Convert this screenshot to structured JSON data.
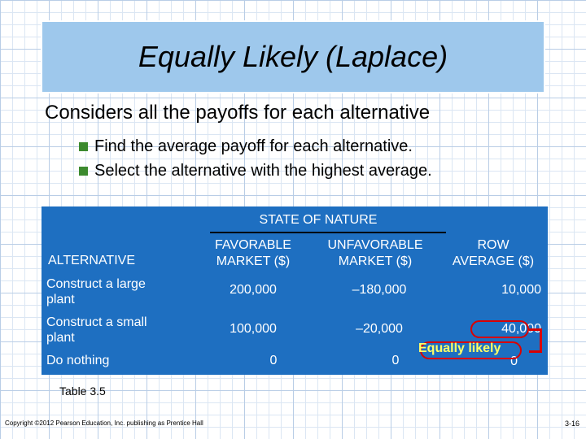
{
  "slide": {
    "title": "Equally Likely (Laplace)",
    "subtitle": "Considers all the payoffs for each alternative",
    "bullets": [
      "Find the average payoff for each alternative.",
      "Select the alternative with the highest average."
    ]
  },
  "table": {
    "state_header": "STATE OF NATURE",
    "col_alternative": "ALTERNATIVE",
    "col_favorable": [
      "FAVORABLE",
      "MARKET ($)"
    ],
    "col_unfavorable": [
      "UNFAVORABLE",
      "MARKET ($)"
    ],
    "col_row_average": [
      "ROW",
      "AVERAGE ($)"
    ],
    "rows": [
      {
        "alternative": [
          "Construct a large",
          "plant"
        ],
        "favorable": "200,000",
        "unfavorable": "–180,000",
        "average": "10,000"
      },
      {
        "alternative": [
          "Construct a small",
          "plant"
        ],
        "favorable": "100,000",
        "unfavorable": "–20,000",
        "average": "40,000"
      },
      {
        "alternative": [
          "Do nothing"
        ],
        "favorable": "0",
        "unfavorable": "0",
        "average": "0"
      }
    ],
    "callout": "Equally likely"
  },
  "footnote": "Table 3.5",
  "copyright": "Copyright ©2012 Pearson Education, Inc. publishing as Prentice Hall",
  "page_number": "3-16",
  "colors": {
    "table_bg": "#1e6fc1",
    "title_bg": "#9ec8ec",
    "bullet": "#3c8a2e",
    "callout": "#ffff66",
    "highlight": "#d90000"
  }
}
